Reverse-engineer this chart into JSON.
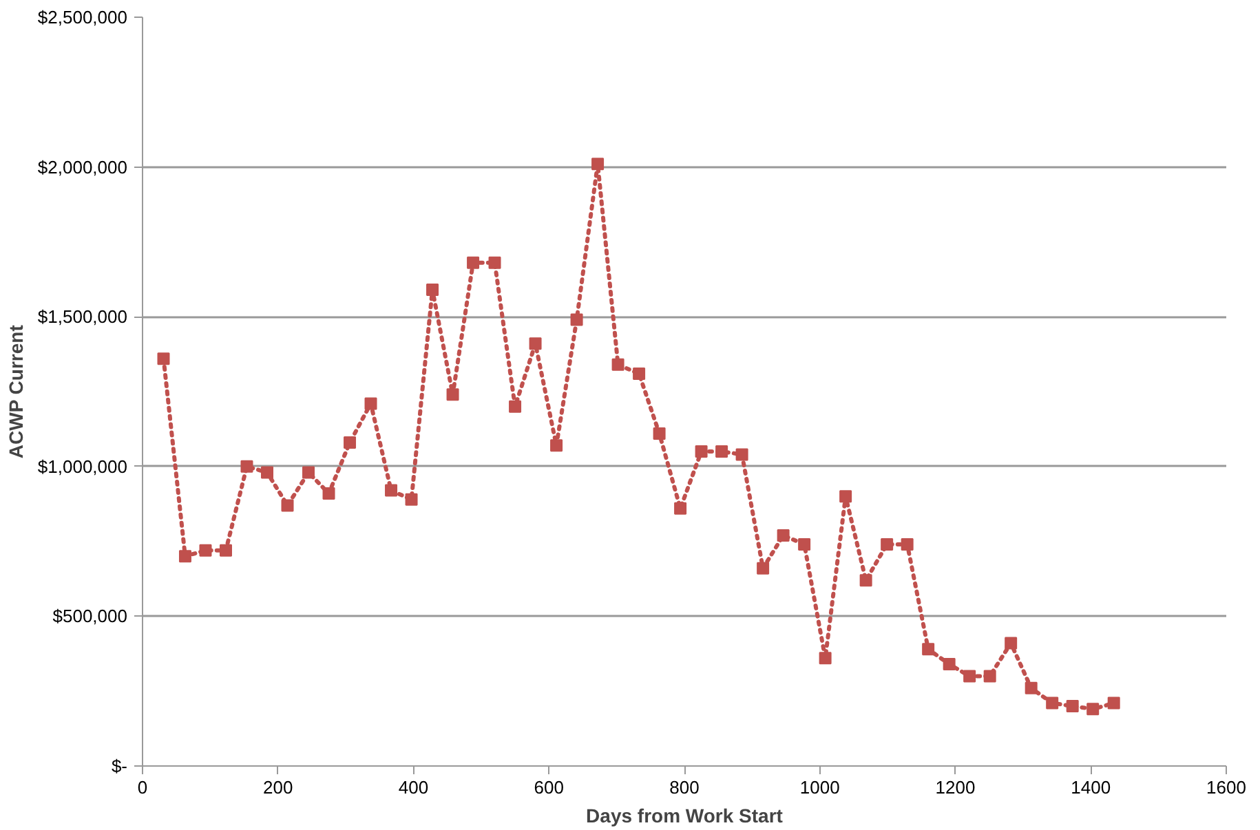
{
  "chart_data": {
    "type": "line",
    "xlabel": "Days from Work Start",
    "ylabel": "ACWP Current",
    "x": [
      31,
      63,
      93,
      123,
      154,
      184,
      214,
      245,
      275,
      306,
      337,
      367,
      397,
      428,
      458,
      488,
      520,
      550,
      580,
      611,
      641,
      672,
      702,
      733,
      763,
      794,
      825,
      855,
      885,
      916,
      946,
      977,
      1008,
      1038,
      1068,
      1099,
      1129,
      1160,
      1191,
      1221,
      1251,
      1282,
      1312,
      1343,
      1373,
      1403,
      1434
    ],
    "series": [
      {
        "color": "#c0504d",
        "values": [
          1360000,
          700000,
          720000,
          720000,
          1000000,
          980000,
          870000,
          980000,
          910000,
          1080000,
          1210000,
          920000,
          890000,
          1590000,
          1240000,
          1680000,
          1680000,
          1200000,
          1410000,
          1070000,
          1490000,
          2010000,
          1340000,
          1310000,
          1110000,
          860000,
          1050000,
          1050000,
          1040000,
          660000,
          770000,
          740000,
          360000,
          900000,
          620000,
          740000,
          740000,
          390000,
          340000,
          300000,
          300000,
          410000,
          260000,
          210000,
          200000,
          190000,
          210000
        ]
      }
    ],
    "xlim": [
      0,
      1600
    ],
    "xticks": [
      0,
      200,
      400,
      600,
      800,
      1000,
      1200,
      1400,
      1600
    ],
    "ylim": [
      0,
      2500000
    ],
    "yticks": [
      {
        "value": 0,
        "label": "$-"
      },
      {
        "value": 500000,
        "label": "$500,000"
      },
      {
        "value": 1000000,
        "label": "$1,000,000"
      },
      {
        "value": 1500000,
        "label": "$1,500,000"
      },
      {
        "value": 2000000,
        "label": "$2,000,000"
      },
      {
        "value": 2500000,
        "label": "$2,500,000"
      }
    ],
    "grid": "y",
    "marker": "square",
    "line_style": "dotted"
  }
}
